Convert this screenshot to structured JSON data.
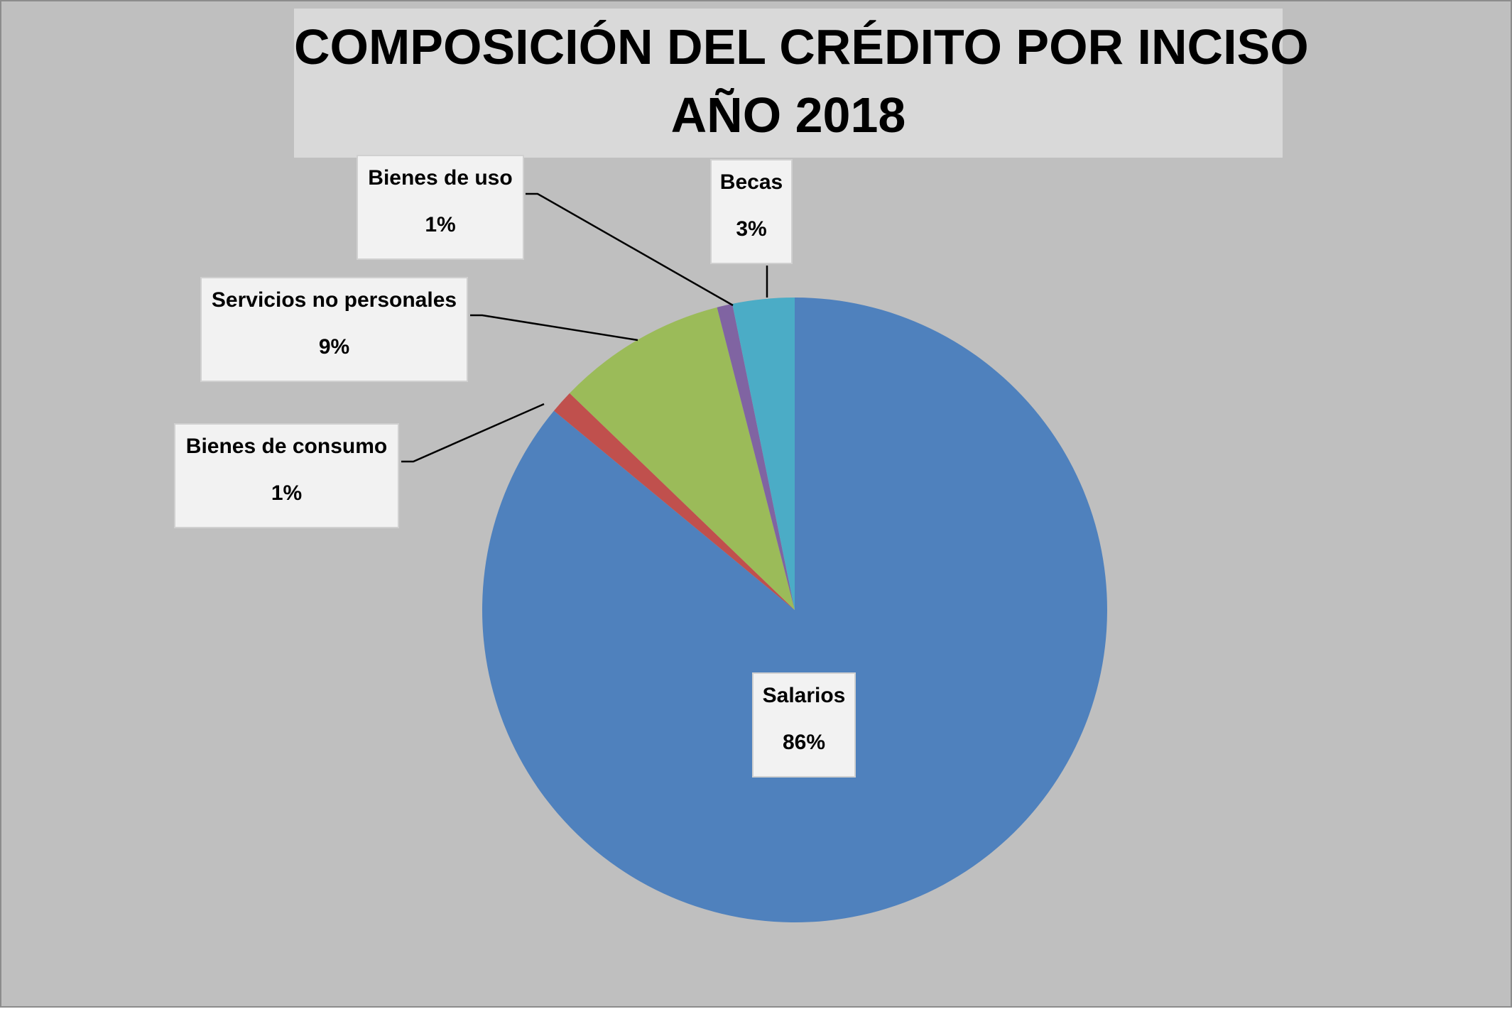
{
  "chart_data": {
    "type": "pie",
    "title_lines": [
      "COMPOSICIÓN DEL CRÉDITO POR INCISO",
      "AÑO 2018"
    ],
    "slices": [
      {
        "name": "Salarios",
        "percent_label": "86%",
        "value": 86.0,
        "color": "#4f81bd"
      },
      {
        "name": "Bienes de consumo",
        "percent_label": "1%",
        "value": 1.2,
        "color": "#c0504d"
      },
      {
        "name": "Servicios no personales",
        "percent_label": "9%",
        "value": 8.8,
        "color": "#9bbb59"
      },
      {
        "name": "Bienes de uso",
        "percent_label": "1%",
        "value": 0.8,
        "color": "#8064a2"
      },
      {
        "name": "Becas",
        "percent_label": "3%",
        "value": 3.2,
        "color": "#4bacc6"
      }
    ],
    "start_angle": "12 o'clock",
    "direction": "clockwise",
    "background_color": "#bfbfbf",
    "title_background_color": "#d9d9d9",
    "label_background_color": "#f2f2f2"
  }
}
